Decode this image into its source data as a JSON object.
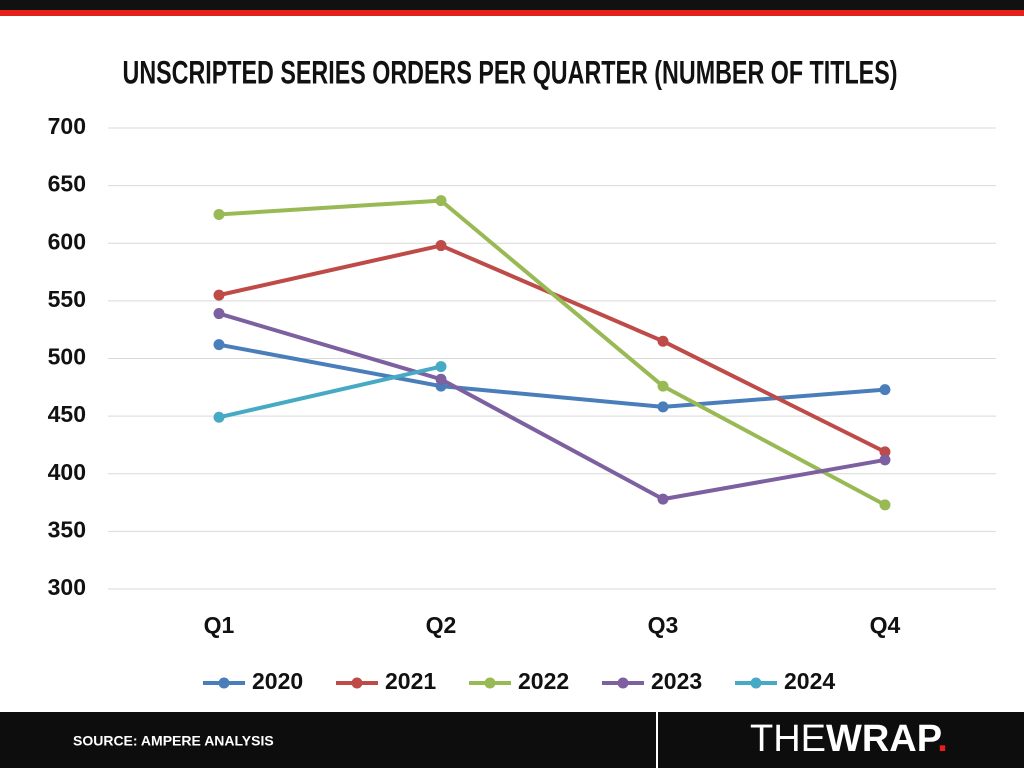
{
  "chart_data": {
    "type": "line",
    "title": "UNSCRIPTED SERIES ORDERS PER QUARTER (NUMBER OF TITLES)",
    "categories": [
      "Q1",
      "Q2",
      "Q3",
      "Q4"
    ],
    "series": [
      {
        "name": "2020",
        "color": "#4a7ebb",
        "values": [
          512,
          476,
          458,
          473
        ]
      },
      {
        "name": "2021",
        "color": "#be4b48",
        "values": [
          555,
          598,
          515,
          419
        ]
      },
      {
        "name": "2022",
        "color": "#98b954",
        "values": [
          625,
          637,
          476,
          373
        ]
      },
      {
        "name": "2023",
        "color": "#7d60a0",
        "values": [
          539,
          482,
          378,
          412
        ]
      },
      {
        "name": "2024",
        "color": "#46aac5",
        "values": [
          449,
          493,
          null,
          null
        ]
      }
    ],
    "ylim": [
      300,
      700
    ],
    "yticks": [
      300,
      350,
      400,
      450,
      500,
      550,
      600,
      650,
      700
    ],
    "grid": true,
    "legend": "bottom"
  },
  "footer": {
    "source": "SOURCE: AMPERE ANALYSIS",
    "brand_light": "THE",
    "brand_bold": "WRAP",
    "brand_dot": "."
  }
}
